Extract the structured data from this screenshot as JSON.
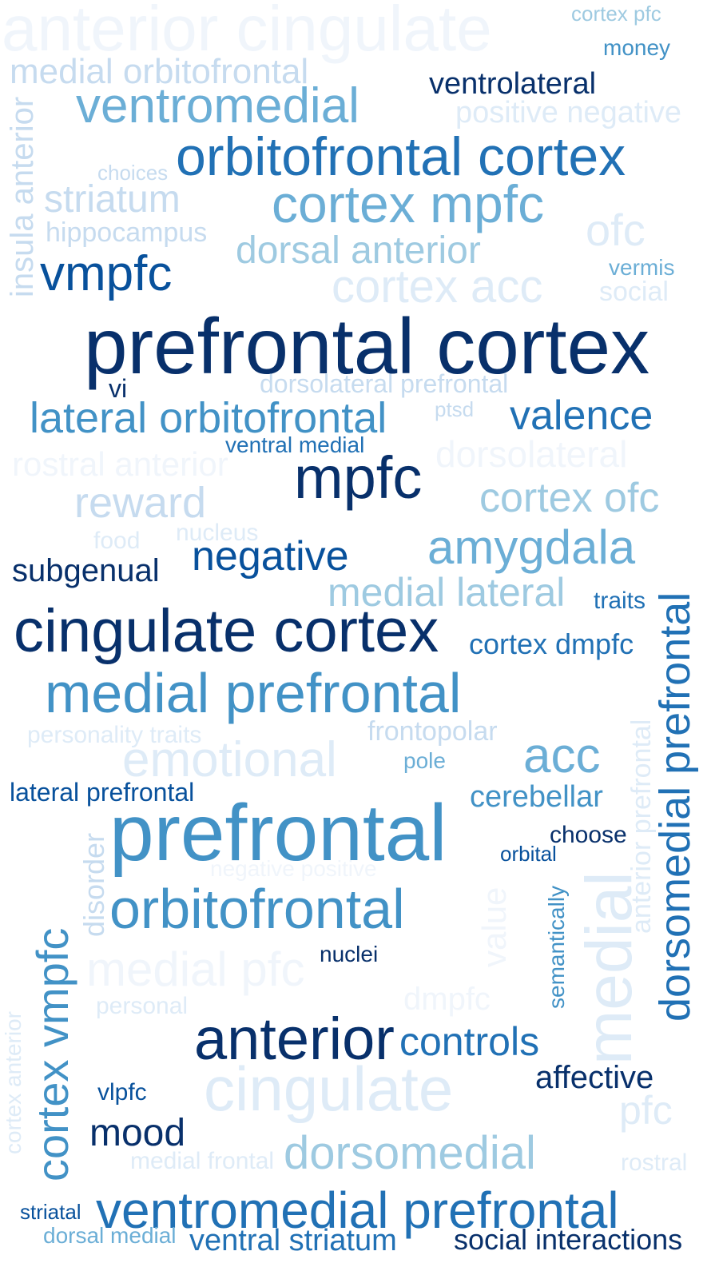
{
  "palette": {
    "navy": "#08306b",
    "dark_blue": "#08519c",
    "blue": "#2171b5",
    "mid_blue": "#4292c6",
    "light_blue": "#6baed6",
    "pale_blue": "#9ecae1",
    "very_pale_blue": "#c6dbef",
    "faint_blue": "#deebf7",
    "ghost_blue": "#f0f5fb"
  },
  "words": [
    {
      "text": "anterior cingulate",
      "color": "#f0f5fb",
      "orientation": "horizontal"
    },
    {
      "text": "cortex pfc",
      "color": "#9ecae1",
      "orientation": "horizontal"
    },
    {
      "text": "money",
      "color": "#4292c6",
      "orientation": "horizontal"
    },
    {
      "text": "medial orbitofrontal",
      "color": "#c6dbef",
      "orientation": "horizontal"
    },
    {
      "text": "ventrolateral",
      "color": "#08306b",
      "orientation": "horizontal"
    },
    {
      "text": "ventromedial",
      "color": "#6baed6",
      "orientation": "horizontal"
    },
    {
      "text": "positive negative",
      "color": "#deebf7",
      "orientation": "horizontal"
    },
    {
      "text": "insula anterior",
      "color": "#c6dbef",
      "orientation": "vertical"
    },
    {
      "text": "orbitofrontal cortex",
      "color": "#2171b5",
      "orientation": "horizontal"
    },
    {
      "text": "choices",
      "color": "#c6dbef",
      "orientation": "horizontal"
    },
    {
      "text": "striatum",
      "color": "#c6dbef",
      "orientation": "horizontal"
    },
    {
      "text": "cortex mpfc",
      "color": "#6baed6",
      "orientation": "horizontal"
    },
    {
      "text": "hippocampus",
      "color": "#c6dbef",
      "orientation": "horizontal"
    },
    {
      "text": "ofc",
      "color": "#deebf7",
      "orientation": "horizontal"
    },
    {
      "text": "dorsal anterior",
      "color": "#9ecae1",
      "orientation": "horizontal"
    },
    {
      "text": "vmpfc",
      "color": "#08519c",
      "orientation": "horizontal"
    },
    {
      "text": "vermis",
      "color": "#6baed6",
      "orientation": "horizontal"
    },
    {
      "text": "cortex acc",
      "color": "#deebf7",
      "orientation": "horizontal"
    },
    {
      "text": "social",
      "color": "#deebf7",
      "orientation": "horizontal"
    },
    {
      "text": "prefrontal cortex",
      "color": "#08306b",
      "orientation": "horizontal"
    },
    {
      "text": "vi",
      "color": "#08306b",
      "orientation": "horizontal"
    },
    {
      "text": "dorsolateral prefrontal",
      "color": "#c6dbef",
      "orientation": "horizontal"
    },
    {
      "text": "lateral orbitofrontal",
      "color": "#4292c6",
      "orientation": "horizontal"
    },
    {
      "text": "ptsd",
      "color": "#c6dbef",
      "orientation": "horizontal"
    },
    {
      "text": "valence",
      "color": "#2171b5",
      "orientation": "horizontal"
    },
    {
      "text": "ventral medial",
      "color": "#2171b5",
      "orientation": "horizontal"
    },
    {
      "text": "rostral anterior",
      "color": "#f0f5fb",
      "orientation": "horizontal"
    },
    {
      "text": "dorsolateral",
      "color": "#f0f5fb",
      "orientation": "horizontal"
    },
    {
      "text": "mpfc",
      "color": "#08306b",
      "orientation": "horizontal"
    },
    {
      "text": "reward",
      "color": "#c6dbef",
      "orientation": "horizontal"
    },
    {
      "text": "cortex ofc",
      "color": "#9ecae1",
      "orientation": "horizontal"
    },
    {
      "text": "food",
      "color": "#deebf7",
      "orientation": "horizontal"
    },
    {
      "text": "nucleus",
      "color": "#deebf7",
      "orientation": "horizontal"
    },
    {
      "text": "amygdala",
      "color": "#6baed6",
      "orientation": "horizontal"
    },
    {
      "text": "negative",
      "color": "#08519c",
      "orientation": "horizontal"
    },
    {
      "text": "subgenual",
      "color": "#08306b",
      "orientation": "horizontal"
    },
    {
      "text": "medial lateral",
      "color": "#9ecae1",
      "orientation": "horizontal"
    },
    {
      "text": "traits",
      "color": "#2171b5",
      "orientation": "horizontal"
    },
    {
      "text": "dorsomedial prefrontal",
      "color": "#2171b5",
      "orientation": "vertical"
    },
    {
      "text": "cingulate cortex",
      "color": "#08306b",
      "orientation": "horizontal"
    },
    {
      "text": "cortex dmpfc",
      "color": "#2171b5",
      "orientation": "horizontal"
    },
    {
      "text": "medial prefrontal",
      "color": "#4292c6",
      "orientation": "horizontal"
    },
    {
      "text": "anterior prefrontal",
      "color": "#deebf7",
      "orientation": "vertical"
    },
    {
      "text": "personality traits",
      "color": "#deebf7",
      "orientation": "horizontal"
    },
    {
      "text": "frontopolar",
      "color": "#c6dbef",
      "orientation": "horizontal"
    },
    {
      "text": "emotional",
      "color": "#deebf7",
      "orientation": "horizontal"
    },
    {
      "text": "pole",
      "color": "#6baed6",
      "orientation": "horizontal"
    },
    {
      "text": "acc",
      "color": "#6baed6",
      "orientation": "horizontal"
    },
    {
      "text": "lateral prefrontal",
      "color": "#08519c",
      "orientation": "horizontal"
    },
    {
      "text": "cerebellar",
      "color": "#4292c6",
      "orientation": "horizontal"
    },
    {
      "text": "prefrontal",
      "color": "#4292c6",
      "orientation": "horizontal"
    },
    {
      "text": "disorder",
      "color": "#c6dbef",
      "orientation": "vertical"
    },
    {
      "text": "choose",
      "color": "#08306b",
      "orientation": "horizontal"
    },
    {
      "text": "orbital",
      "color": "#08519c",
      "orientation": "horizontal"
    },
    {
      "text": "medial",
      "color": "#deebf7",
      "orientation": "vertical"
    },
    {
      "text": "negative positive",
      "color": "#f0f5fb",
      "orientation": "horizontal"
    },
    {
      "text": "value",
      "color": "#f0f5fb",
      "orientation": "vertical"
    },
    {
      "text": "semantically",
      "color": "#4292c6",
      "orientation": "vertical"
    },
    {
      "text": "cortex vmpfc",
      "color": "#4292c6",
      "orientation": "vertical"
    },
    {
      "text": "orbitofrontal",
      "color": "#4292c6",
      "orientation": "horizontal"
    },
    {
      "text": "nuclei",
      "color": "#08306b",
      "orientation": "horizontal"
    },
    {
      "text": "medial pfc",
      "color": "#f0f5fb",
      "orientation": "horizontal"
    },
    {
      "text": "dmpfc",
      "color": "#f0f5fb",
      "orientation": "horizontal"
    },
    {
      "text": "personal",
      "color": "#deebf7",
      "orientation": "horizontal"
    },
    {
      "text": "cortex anterior",
      "color": "#deebf7",
      "orientation": "vertical"
    },
    {
      "text": "anterior",
      "color": "#08306b",
      "orientation": "horizontal"
    },
    {
      "text": "controls",
      "color": "#2171b5",
      "orientation": "horizontal"
    },
    {
      "text": "cingulate",
      "color": "#deebf7",
      "orientation": "horizontal"
    },
    {
      "text": "affective",
      "color": "#08306b",
      "orientation": "horizontal"
    },
    {
      "text": "vlpfc",
      "color": "#08519c",
      "orientation": "horizontal"
    },
    {
      "text": "pfc",
      "color": "#deebf7",
      "orientation": "horizontal"
    },
    {
      "text": "mood",
      "color": "#08306b",
      "orientation": "horizontal"
    },
    {
      "text": "medial frontal",
      "color": "#deebf7",
      "orientation": "horizontal"
    },
    {
      "text": "dorsomedial",
      "color": "#9ecae1",
      "orientation": "horizontal"
    },
    {
      "text": "rostral",
      "color": "#deebf7",
      "orientation": "horizontal"
    },
    {
      "text": "striatal",
      "color": "#08519c",
      "orientation": "horizontal"
    },
    {
      "text": "ventromedial prefrontal",
      "color": "#2171b5",
      "orientation": "horizontal"
    },
    {
      "text": "dorsal medial",
      "color": "#6baed6",
      "orientation": "horizontal"
    },
    {
      "text": "ventral striatum",
      "color": "#2171b5",
      "orientation": "horizontal"
    },
    {
      "text": "social interactions",
      "color": "#08306b",
      "orientation": "horizontal"
    }
  ]
}
